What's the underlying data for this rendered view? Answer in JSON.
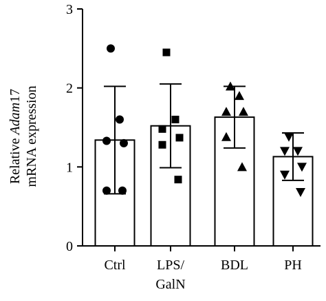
{
  "chart_data": {
    "type": "bar",
    "categories": [
      "Ctrl",
      "LPS/\nGalN",
      "BDL",
      "PH"
    ],
    "ylabel_line1_prefix": "Relative ",
    "ylabel_line1_gene": "Adam",
    "ylabel_line1_suffix": "17",
    "ylabel_line2": "mRNA expression",
    "ylim": [
      0,
      3
    ],
    "yticks": [
      0,
      1,
      2,
      3
    ],
    "grid": false,
    "bar_color": "#ffffff",
    "edge_color": "#000000",
    "series": [
      {
        "values": [
          1.34,
          1.52,
          1.63,
          1.13
        ],
        "error": [
          0.68,
          0.53,
          0.39,
          0.3
        ],
        "markers": [
          "circle",
          "square",
          "triangle-up",
          "triangle-down"
        ],
        "points": [
          [
            2.5,
            1.6,
            1.33,
            1.3,
            0.7,
            0.7
          ],
          [
            2.45,
            1.6,
            1.48,
            1.37,
            1.28,
            0.84
          ],
          [
            2.02,
            1.9,
            1.7,
            1.7,
            1.38,
            1.0
          ],
          [
            1.38,
            1.2,
            1.2,
            1.0,
            0.9,
            0.68
          ]
        ]
      }
    ]
  }
}
